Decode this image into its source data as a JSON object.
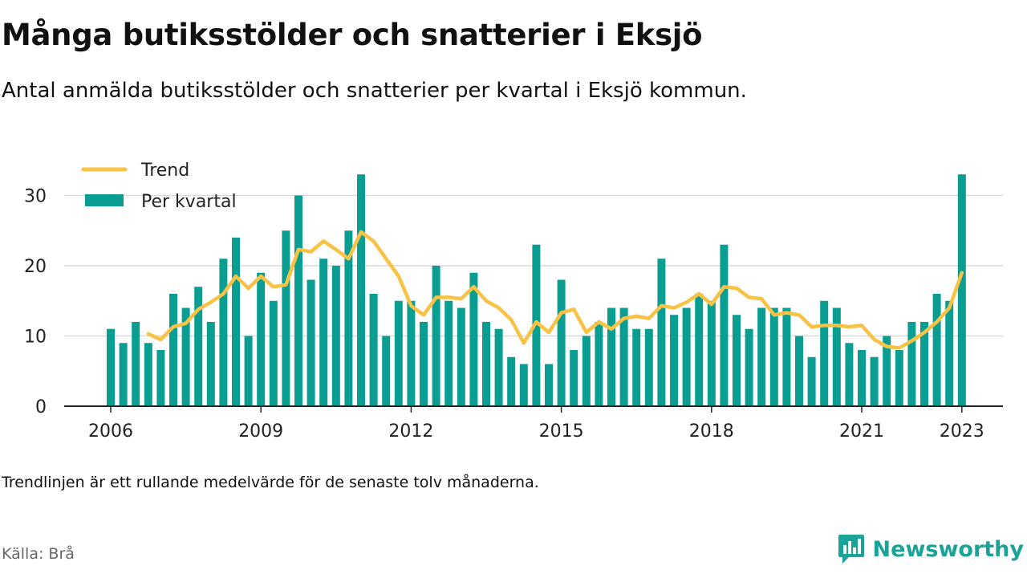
{
  "header": {
    "title": "Många butiksstölder och snatterier i Eksjö",
    "subtitle": "Antal anmälda butiksstölder och snatterier per kvartal i Eksjö kommun."
  },
  "footer": {
    "note": "Trendlinjen är ett rullande medelvärde för de senaste tolv månaderna.",
    "source": "Källa: Brå",
    "brand": "Newsworthy"
  },
  "colors": {
    "bar": "#0a9e93",
    "trend": "#f8c244",
    "brand": "#1aa399",
    "grid": "#d9d9d9",
    "axis": "#222222"
  },
  "icons": {
    "brand_logo": "bar-chart-bubble-icon"
  },
  "chart_data": {
    "type": "bar",
    "title": "Många butiksstölder och snatterier i Eksjö",
    "subtitle": "Antal anmälda butiksstölder och snatterier per kvartal i Eksjö kommun.",
    "xlabel": "",
    "ylabel": "",
    "x_start": "2006 Q1",
    "x_end": "2023 Q1",
    "xticks": [
      "2006",
      "2009",
      "2012",
      "2015",
      "2018",
      "2021",
      "2023"
    ],
    "yticks": [
      0,
      10,
      20,
      30
    ],
    "ylim": [
      0,
      33
    ],
    "grid": true,
    "legend_position": "top-left",
    "series": [
      {
        "name": "Per kvartal",
        "type": "bar",
        "values": [
          11,
          9,
          12,
          9,
          8,
          16,
          14,
          17,
          12,
          21,
          24,
          10,
          19,
          15,
          25,
          30,
          18,
          21,
          20,
          25,
          33,
          16,
          10,
          15,
          15,
          12,
          20,
          15,
          14,
          19,
          12,
          11,
          7,
          6,
          23,
          6,
          18,
          8,
          10,
          12,
          14,
          14,
          11,
          11,
          21,
          13,
          14,
          16,
          15,
          23,
          13,
          11,
          14,
          14,
          14,
          10,
          7,
          15,
          14,
          9,
          8,
          7,
          10,
          8,
          12,
          12,
          16,
          15,
          33
        ]
      },
      {
        "name": "Trend",
        "type": "line",
        "values": [
          null,
          null,
          null,
          10.3,
          9.5,
          11.3,
          11.8,
          13.8,
          14.8,
          16.0,
          18.5,
          16.8,
          18.5,
          17.0,
          17.3,
          22.3,
          22.0,
          23.5,
          22.3,
          21.0,
          24.8,
          23.5,
          21.0,
          18.5,
          14.3,
          13.0,
          15.5,
          15.5,
          15.3,
          17.0,
          15.0,
          14.0,
          12.3,
          9.0,
          12.0,
          10.5,
          13.3,
          13.8,
          10.5,
          12.0,
          11.0,
          12.5,
          12.8,
          12.5,
          14.3,
          14.0,
          14.8,
          16.0,
          14.5,
          17.0,
          16.8,
          15.5,
          15.3,
          13.0,
          13.3,
          13.0,
          11.3,
          11.5,
          11.5,
          11.3,
          11.5,
          9.5,
          8.5,
          8.3,
          9.3,
          10.5,
          12.0,
          14.0,
          19.0
        ]
      }
    ]
  }
}
